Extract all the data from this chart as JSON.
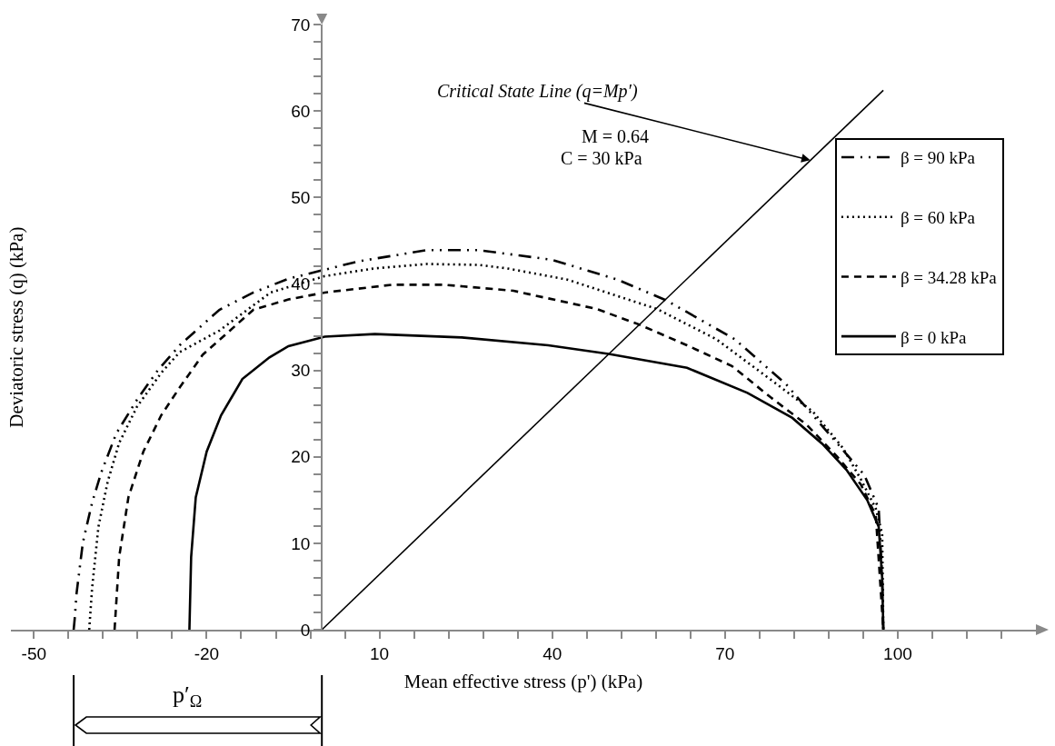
{
  "chart_data": {
    "type": "line",
    "xlabel": "Mean effective stress (p') (kPa)",
    "ylabel": "Deviatoric stress (q) (kPa)",
    "annotations": [
      {
        "text": "Critical State Line (q=Mp′)",
        "x": 84.8,
        "y": 54.3
      },
      "M = 0.64",
      "C = 30 kPa",
      "p′$_{Ω}$"
    ],
    "series": [
      {
        "name": "β = 90 kPa",
        "color": "#000000",
        "line_style": "dashdot",
        "x": [
          -43.1,
          -42.9,
          -42.6,
          -41.5,
          -39.9,
          -38.3,
          -35.7,
          -32.1,
          -28.5,
          -24.7,
          -17.8,
          -11.9,
          -5.8,
          6.3,
          18.2,
          27.2,
          39.9,
          51.3,
          59.8,
          71.7,
          80.6,
          88.4,
          94.2,
          96.7,
          97.3,
          97.5
        ],
        "values": [
          0,
          1.4,
          4.2,
          10.1,
          14.7,
          18.2,
          22.7,
          26.6,
          30,
          32.9,
          37,
          39,
          40.6,
          42.6,
          43.9,
          43.9,
          42.8,
          40.5,
          38.1,
          33.6,
          28.4,
          22.4,
          17.9,
          14,
          6,
          0
        ]
      },
      {
        "name": "β = 60 kPa",
        "color": "#000000",
        "line_style": "dotted",
        "x": [
          -40.4,
          -39.9,
          -38.8,
          -37.2,
          -35.2,
          -32.1,
          -27.9,
          -24.7,
          -17.8,
          -8.9,
          0.5,
          9.2,
          18.2,
          27.2,
          32.1,
          42.6,
          58.2,
          68.5,
          79,
          85.3,
          90.5,
          93.6,
          96.2,
          97.3,
          97.5
        ],
        "values": [
          0,
          4.8,
          11.9,
          17.1,
          21.6,
          25.8,
          29.7,
          32.1,
          34.6,
          39,
          40.9,
          41.8,
          42.3,
          42.2,
          41.8,
          40.5,
          37.1,
          33.6,
          28.4,
          25.2,
          21,
          17.4,
          14,
          11.1,
          0
        ]
      },
      {
        "name": "β = 34.28 kPa",
        "color": "#000000",
        "line_style": "dashed",
        "x": [
          -36,
          -35.2,
          -33.6,
          -31,
          -27.9,
          -24.7,
          -20.7,
          -11.9,
          -5.8,
          0.5,
          12.2,
          21.3,
          33.3,
          47.7,
          55.1,
          63.4,
          71.2,
          77.9,
          84.2,
          89.5,
          93.6,
          96.2,
          97.5
        ],
        "values": [
          0,
          8.4,
          15.3,
          20.6,
          24.8,
          28,
          31.8,
          37,
          38.2,
          39,
          39.9,
          39.9,
          39.2,
          37.1,
          35.3,
          32.9,
          30.5,
          26.9,
          23.7,
          20,
          16.8,
          13.2,
          0
        ]
      },
      {
        "name": "β = 0 kPa",
        "color": "#000000",
        "line_style": "solid",
        "x": [
          -23,
          -22.7,
          -21.9,
          -20,
          -17.5,
          -13.8,
          -9.1,
          -5.8,
          0.5,
          9.2,
          24.3,
          39.3,
          49.8,
          63.4,
          73.9,
          81.7,
          86.9,
          91.1,
          94.7,
          96.7,
          97.3,
          97.5
        ],
        "values": [
          0,
          8.4,
          15.3,
          20.6,
          24.8,
          29,
          31.5,
          32.8,
          33.9,
          34.2,
          33.8,
          32.9,
          31.9,
          30.3,
          27.4,
          24.5,
          21.5,
          18.5,
          15,
          11.9,
          6,
          0
        ]
      },
      {
        "type": "line",
        "color": "#000000",
        "line_style": "solid",
        "x": [
          0,
          97.5
        ],
        "values": [
          0,
          62.4
        ]
      }
    ],
    "xlim": [
      -54,
      124
    ],
    "ylim": [
      0,
      70
    ],
    "xticks": [
      -50,
      {
        "value": -44,
        "label": null
      },
      {
        "value": -38,
        "label": null
      },
      {
        "value": -32,
        "label": null
      },
      {
        "value": -26,
        "label": null
      },
      -20,
      {
        "value": -14,
        "label": null
      },
      {
        "value": -8,
        "label": null
      },
      {
        "value": -2,
        "label": null
      },
      {
        "value": 4,
        "label": null
      },
      10,
      {
        "value": 16,
        "label": null
      },
      {
        "value": 22,
        "label": null
      },
      {
        "value": 28,
        "label": null
      },
      {
        "value": 34,
        "label": null
      },
      40,
      {
        "value": 46,
        "label": null
      },
      {
        "value": 52,
        "label": null
      },
      {
        "value": 58,
        "label": null
      },
      {
        "value": 64,
        "label": null
      },
      70,
      {
        "value": 76,
        "label": null
      },
      {
        "value": 82,
        "label": null
      },
      {
        "value": 88,
        "label": null
      },
      {
        "value": 94,
        "label": null
      },
      100,
      {
        "value": 106,
        "label": null
      },
      {
        "value": 112,
        "label": null
      },
      {
        "value": 118,
        "label": null
      }
    ],
    "yticks": [
      0,
      {
        "value": 2,
        "label": null
      },
      {
        "value": 4,
        "label": null
      },
      {
        "value": 6,
        "label": null
      },
      {
        "value": 8,
        "label": null
      },
      10,
      {
        "value": 12,
        "label": null
      },
      {
        "value": 14,
        "label": null
      },
      {
        "value": 16,
        "label": null
      },
      {
        "value": 18,
        "label": null
      },
      20,
      {
        "value": 22,
        "label": null
      },
      {
        "value": 24,
        "label": null
      },
      {
        "value": 26,
        "label": null
      },
      {
        "value": 28,
        "label": null
      },
      30,
      {
        "value": 32,
        "label": null
      },
      {
        "value": 34,
        "label": null
      },
      {
        "value": 36,
        "label": null
      },
      {
        "value": 38,
        "label": null
      },
      40,
      {
        "value": 42,
        "label": null
      },
      {
        "value": 44,
        "label": null
      },
      {
        "value": 46,
        "label": null
      },
      {
        "value": 48,
        "label": null
      },
      50,
      {
        "value": 52,
        "label": null
      },
      {
        "value": 54,
        "label": null
      },
      {
        "value": 56,
        "label": null
      },
      {
        "value": 58,
        "label": null
      },
      60,
      {
        "value": 62,
        "label": null
      },
      {
        "value": 64,
        "label": null
      },
      {
        "value": 66,
        "label": null
      },
      {
        "value": 68,
        "label": null
      },
      70
    ],
    "grid": false,
    "legend": "top right",
    "marker": "none"
  }
}
